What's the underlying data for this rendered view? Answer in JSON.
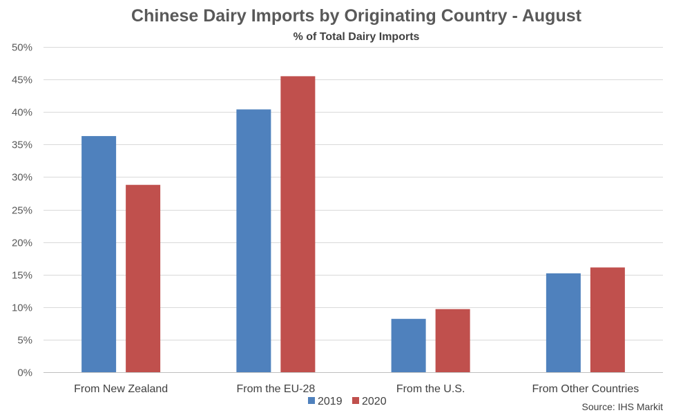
{
  "chart_data": {
    "type": "bar",
    "title": "Chinese Dairy Imports by Originating Country - August",
    "subtitle": "% of Total Dairy Imports",
    "categories": [
      "From New Zealand",
      "From the EU-28",
      "From the U.S.",
      "From Other Countries"
    ],
    "series": [
      {
        "name": "2019",
        "color": "#4f81bd",
        "values": [
          36.3,
          40.4,
          8.2,
          15.2
        ]
      },
      {
        "name": "2020",
        "color": "#c0504d",
        "values": [
          28.8,
          45.5,
          9.7,
          16.1
        ]
      }
    ],
    "ylim": [
      0,
      50
    ],
    "yticks": [
      0,
      5,
      10,
      15,
      20,
      25,
      30,
      35,
      40,
      45,
      50
    ],
    "ytick_format": "%",
    "grid": true,
    "legend": "bottom-center",
    "source": "Source: IHS Markit"
  }
}
